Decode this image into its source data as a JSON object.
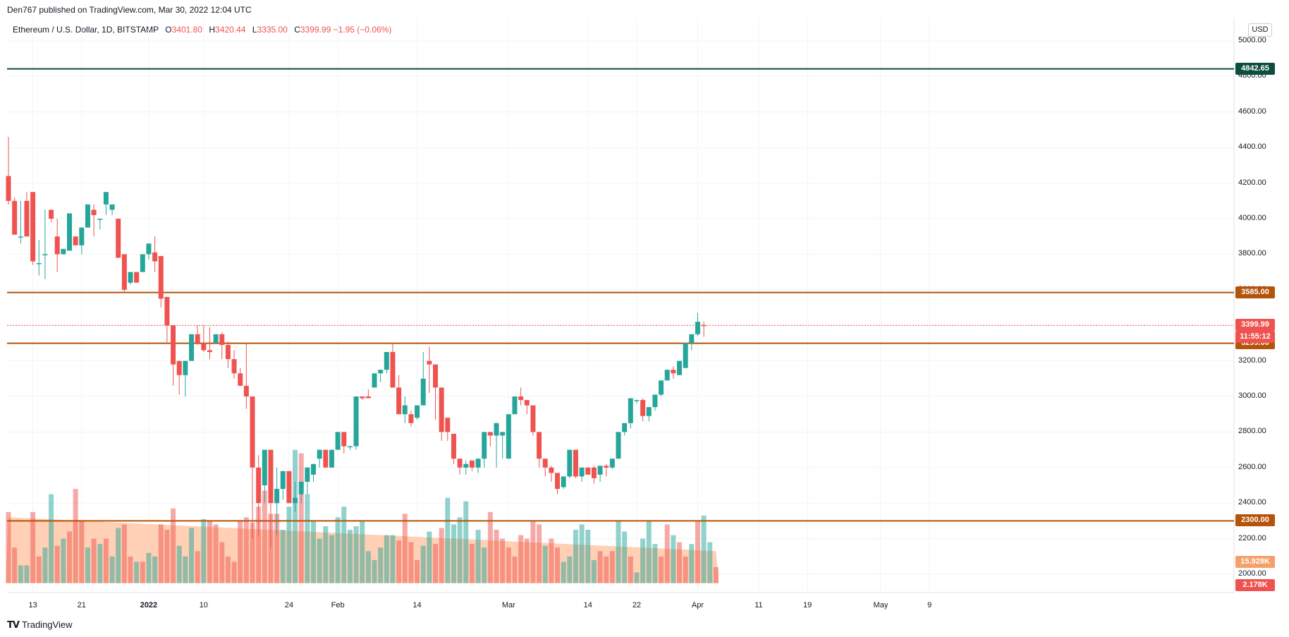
{
  "header": {
    "publish_text": "Den767 published on TradingView.com, Mar 30, 2022 12:04 UTC",
    "symbol": "Ethereum / U.S. Dollar, 1D, BITSTAMP",
    "o_label": "O",
    "o_value": "3401.80",
    "h_label": "H",
    "h_value": "3420.44",
    "l_label": "L",
    "l_value": "3335.00",
    "c_label": "C",
    "c_value": "3399.99",
    "change": "−1.95 (−0.06%)",
    "currency": "USD"
  },
  "footer": {
    "brand": "TradingView"
  },
  "colors": {
    "up": "#26a69a",
    "down": "#ef5350",
    "level": "#b45309",
    "level_top": "#0d4d3e",
    "volume_ma": "#ffc8a8"
  },
  "chart_data": {
    "type": "candlestick",
    "y_axis": {
      "ticks": [
        "5000.00",
        "4800.00",
        "4600.00",
        "4400.00",
        "4200.00",
        "4000.00",
        "3800.00",
        "3600.00",
        "3400.00",
        "3200.00",
        "3000.00",
        "2800.00",
        "2600.00",
        "2400.00",
        "2200.00",
        "2000.00"
      ],
      "range": [
        1910,
        5070
      ]
    },
    "x_axis": {
      "ticks": [
        {
          "label": "13",
          "index": 4
        },
        {
          "label": "21",
          "index": 12
        },
        {
          "label": "2022",
          "index": 23,
          "bold": true
        },
        {
          "label": "10",
          "index": 32
        },
        {
          "label": "24",
          "index": 46
        },
        {
          "label": "Feb",
          "index": 54
        },
        {
          "label": "14",
          "index": 67
        },
        {
          "label": "Mar",
          "index": 82
        },
        {
          "label": "14",
          "index": 95
        },
        {
          "label": "22",
          "index": 103
        },
        {
          "label": "Apr",
          "index": 113
        },
        {
          "label": "11",
          "index": 123
        },
        {
          "label": "19",
          "index": 131
        },
        {
          "label": "May",
          "index": 143
        },
        {
          "label": "9",
          "index": 151
        }
      ]
    },
    "levels": [
      {
        "value": 4842.65,
        "label": "4842.65"
      },
      {
        "value": 3585.0,
        "label": "3585.00"
      },
      {
        "value": 3299.0,
        "label": "3299.00"
      },
      {
        "value": 2300.0,
        "label": "2300.00"
      }
    ],
    "last_price": {
      "value": 3399.99,
      "label": "3399.99",
      "countdown": "11:55:12"
    },
    "volume_labels": {
      "volume_ma": "15.928K",
      "volume": "2.178K"
    },
    "candles": [
      [
        4240,
        4460,
        4100,
        4080
      ],
      [
        4100,
        4120,
        3910,
        3910
      ],
      [
        3900,
        4100,
        3900,
        3860
      ],
      [
        4100,
        4150,
        3900,
        4140
      ],
      [
        4150,
        4150,
        3760,
        3740
      ],
      [
        3750,
        3880,
        3750,
        3680
      ],
      [
        3800,
        4050,
        3800,
        3660
      ],
      [
        4050,
        4050,
        4000,
        3980
      ],
      [
        3900,
        4000,
        3800,
        3700
      ],
      [
        3800,
        3800,
        3830,
        3800
      ],
      [
        3820,
        3830,
        4030,
        3900
      ],
      [
        3900,
        3860,
        3850,
        3860
      ],
      [
        3850,
        3900,
        3950,
        3800
      ],
      [
        3950,
        3950,
        4080,
        4020
      ],
      [
        4050,
        4080,
        4020,
        3900
      ],
      [
        4000,
        4000,
        4000,
        3940
      ],
      [
        4080,
        4080,
        4150,
        4020
      ],
      [
        4050,
        4050,
        4080,
        4020
      ],
      [
        4000,
        4000,
        3780,
        3790
      ],
      [
        3800,
        3800,
        3600,
        3590
      ],
      [
        3640,
        3640,
        3700,
        3630
      ],
      [
        3700,
        3700,
        3640,
        3690
      ],
      [
        3700,
        3700,
        3800,
        3770
      ],
      [
        3800,
        3800,
        3860,
        3770
      ],
      [
        3810,
        3900,
        3760,
        3700
      ],
      [
        3790,
        3790,
        3550,
        3500
      ],
      [
        3560,
        3560,
        3400,
        3300
      ],
      [
        3400,
        3400,
        3180,
        3060
      ],
      [
        3200,
        3200,
        3120,
        3010
      ],
      [
        3120,
        3120,
        3200,
        3000
      ],
      [
        3200,
        3200,
        3350,
        3200
      ],
      [
        3350,
        3400,
        3300,
        3290
      ],
      [
        3300,
        3400,
        3260,
        3250
      ],
      [
        3260,
        3390,
        3250,
        3210
      ],
      [
        3300,
        3300,
        3350,
        3320
      ],
      [
        3350,
        3360,
        3290,
        3210
      ],
      [
        3290,
        3310,
        3210,
        3160
      ],
      [
        3210,
        3260,
        3130,
        3100
      ],
      [
        3130,
        3160,
        3060,
        3060
      ],
      [
        3060,
        3300,
        3000,
        2930
      ],
      [
        3000,
        3000,
        2600,
        2200
      ],
      [
        2600,
        2670,
        2400,
        2210
      ],
      [
        2500,
        2560,
        2700,
        2400
      ],
      [
        2700,
        2700,
        2400,
        2150
      ],
      [
        2400,
        2600,
        2480,
        2220
      ],
      [
        2480,
        2580,
        2580,
        2420
      ],
      [
        2580,
        2580,
        2400,
        2400
      ],
      [
        2400,
        2520,
        2430,
        2350
      ],
      [
        2450,
        2450,
        2520,
        2400
      ],
      [
        2520,
        2560,
        2600,
        2450
      ],
      [
        2560,
        2580,
        2620,
        2520
      ],
      [
        2650,
        2650,
        2700,
        2600
      ],
      [
        2700,
        2700,
        2600,
        2640
      ],
      [
        2600,
        2620,
        2700,
        2600
      ],
      [
        2700,
        2700,
        2800,
        2750
      ],
      [
        2800,
        2800,
        2720,
        2680
      ],
      [
        2720,
        2700,
        2720,
        2700
      ],
      [
        2720,
        2700,
        3000,
        2950
      ],
      [
        3000,
        2980,
        2990,
        2980
      ],
      [
        3000,
        2990,
        2990,
        3040
      ],
      [
        3050,
        3050,
        3130,
        3080
      ],
      [
        3130,
        3150,
        3150,
        3080
      ],
      [
        3150,
        3150,
        3250,
        3130
      ],
      [
        3250,
        3300,
        3050,
        3050
      ],
      [
        3050,
        3120,
        2900,
        3000
      ],
      [
        2900,
        3000,
        2950,
        2850
      ],
      [
        2900,
        2920,
        2850,
        2830
      ],
      [
        2880,
        2950,
        2950,
        2870
      ],
      [
        2950,
        2950,
        3100,
        3250
      ],
      [
        3200,
        3280,
        3180,
        3020
      ],
      [
        3180,
        3150,
        3050,
        2870
      ],
      [
        3050,
        2880,
        2800,
        2750
      ],
      [
        2880,
        2880,
        2800,
        2750
      ],
      [
        2790,
        2780,
        2650,
        2620
      ],
      [
        2650,
        2650,
        2600,
        2560
      ],
      [
        2600,
        2640,
        2620,
        2560
      ],
      [
        2640,
        2640,
        2600,
        2580
      ],
      [
        2600,
        2600,
        2650,
        2570
      ],
      [
        2650,
        2700,
        2800,
        2600
      ],
      [
        2800,
        2800,
        2780,
        2720
      ],
      [
        2780,
        2790,
        2850,
        2600
      ],
      [
        2780,
        2780,
        2800,
        2650
      ],
      [
        2650,
        2700,
        2900,
        2650
      ],
      [
        2900,
        2950,
        3000,
        2900
      ],
      [
        3000,
        3050,
        2980,
        2950
      ],
      [
        2980,
        2980,
        2950,
        2900
      ],
      [
        2950,
        2950,
        2800,
        2780
      ],
      [
        2800,
        2800,
        2650,
        2600
      ],
      [
        2650,
        2650,
        2600,
        2550
      ],
      [
        2600,
        2610,
        2570,
        2520
      ],
      [
        2570,
        2560,
        2480,
        2450
      ],
      [
        2490,
        2500,
        2550,
        2480
      ],
      [
        2550,
        2560,
        2700,
        2540
      ],
      [
        2700,
        2700,
        2550,
        2540
      ],
      [
        2550,
        2600,
        2600,
        2520
      ],
      [
        2600,
        2600,
        2560,
        2560
      ],
      [
        2600,
        2610,
        2540,
        2510
      ],
      [
        2560,
        2590,
        2610,
        2520
      ],
      [
        2610,
        2620,
        2600,
        2550
      ],
      [
        2600,
        2620,
        2650,
        2590
      ],
      [
        2650,
        2660,
        2800,
        2650
      ],
      [
        2800,
        2820,
        2850,
        2780
      ],
      [
        2850,
        2860,
        2990,
        2820
      ],
      [
        2980,
        2980,
        2980,
        2960
      ],
      [
        2980,
        2990,
        2890,
        2860
      ],
      [
        2890,
        2900,
        2940,
        2860
      ],
      [
        2940,
        2950,
        3010,
        2920
      ],
      [
        3010,
        3050,
        3090,
        3000
      ],
      [
        3090,
        3120,
        3150,
        3090
      ],
      [
        3150,
        3170,
        3130,
        3100
      ],
      [
        3120,
        3160,
        3200,
        3120
      ],
      [
        3160,
        3170,
        3300,
        3160
      ],
      [
        3300,
        3330,
        3350,
        3260
      ],
      [
        3350,
        3470,
        3420,
        3340
      ],
      [
        3401.8,
        3420.44,
        3399.99,
        3335
      ]
    ],
    "volumes": [
      [
        2350,
        0
      ],
      [
        2150,
        0
      ],
      [
        2050,
        1
      ],
      [
        2050,
        1
      ],
      [
        2350,
        0
      ],
      [
        2100,
        0
      ],
      [
        2150,
        1
      ],
      [
        2450,
        1
      ],
      [
        2160,
        0
      ],
      [
        2200,
        1
      ],
      [
        2240,
        0
      ],
      [
        2480,
        0
      ],
      [
        2300,
        0
      ],
      [
        2150,
        1
      ],
      [
        2200,
        0
      ],
      [
        2170,
        1
      ],
      [
        2200,
        0
      ],
      [
        2100,
        1
      ],
      [
        2260,
        1
      ],
      [
        2280,
        0
      ],
      [
        2100,
        0
      ],
      [
        2070,
        1
      ],
      [
        2070,
        0
      ],
      [
        2120,
        1
      ],
      [
        2100,
        1
      ],
      [
        2280,
        0
      ],
      [
        2250,
        0
      ],
      [
        2370,
        0
      ],
      [
        2160,
        1
      ],
      [
        2100,
        1
      ],
      [
        2260,
        1
      ],
      [
        2130,
        0
      ],
      [
        2310,
        1
      ],
      [
        2300,
        0
      ],
      [
        2280,
        0
      ],
      [
        2180,
        0
      ],
      [
        2100,
        0
      ],
      [
        2070,
        0
      ],
      [
        2300,
        0
      ],
      [
        2320,
        0
      ],
      [
        2290,
        0
      ],
      [
        2380,
        0
      ],
      [
        2470,
        0
      ],
      [
        2340,
        0
      ],
      [
        2340,
        0
      ],
      [
        2250,
        1
      ],
      [
        2380,
        1
      ],
      [
        2700,
        1
      ],
      [
        2680,
        0
      ],
      [
        2450,
        1
      ],
      [
        2300,
        1
      ],
      [
        2200,
        1
      ],
      [
        2270,
        1
      ],
      [
        2220,
        1
      ],
      [
        2320,
        1
      ],
      [
        2380,
        1
      ],
      [
        2250,
        1
      ],
      [
        2270,
        1
      ],
      [
        2300,
        1
      ],
      [
        2130,
        1
      ],
      [
        2080,
        1
      ],
      [
        2150,
        1
      ],
      [
        2220,
        1
      ],
      [
        2220,
        1
      ],
      [
        2190,
        0
      ],
      [
        2340,
        0
      ],
      [
        2180,
        0
      ],
      [
        2080,
        0
      ],
      [
        2160,
        1
      ],
      [
        2240,
        1
      ],
      [
        2170,
        0
      ],
      [
        2260,
        0
      ],
      [
        2430,
        1
      ],
      [
        2280,
        1
      ],
      [
        2320,
        1
      ],
      [
        2410,
        1
      ],
      [
        2170,
        0
      ],
      [
        2250,
        1
      ],
      [
        2150,
        1
      ],
      [
        2350,
        0
      ],
      [
        2250,
        0
      ],
      [
        2200,
        0
      ],
      [
        2150,
        0
      ],
      [
        2100,
        0
      ],
      [
        2220,
        0
      ],
      [
        2200,
        0
      ],
      [
        2300,
        0
      ],
      [
        2280,
        0
      ],
      [
        2160,
        1
      ],
      [
        2200,
        0
      ],
      [
        2150,
        0
      ],
      [
        2070,
        1
      ],
      [
        2100,
        1
      ],
      [
        2250,
        1
      ],
      [
        2280,
        1
      ],
      [
        2250,
        1
      ],
      [
        2080,
        1
      ],
      [
        2130,
        0
      ],
      [
        2100,
        0
      ],
      [
        2130,
        0
      ],
      [
        2300,
        1
      ],
      [
        2240,
        1
      ],
      [
        2100,
        0
      ],
      [
        2010,
        1
      ],
      [
        2200,
        1
      ],
      [
        2300,
        1
      ],
      [
        2170,
        1
      ],
      [
        2100,
        0
      ],
      [
        2280,
        0
      ],
      [
        2220,
        1
      ],
      [
        2180,
        0
      ],
      [
        2100,
        0
      ],
      [
        2170,
        1
      ],
      [
        2300,
        0
      ],
      [
        2330,
        1
      ],
      [
        2180,
        1
      ],
      [
        2040,
        0
      ]
    ],
    "volume_ma_start": 2320,
    "volume_ma_end": 2130
  }
}
